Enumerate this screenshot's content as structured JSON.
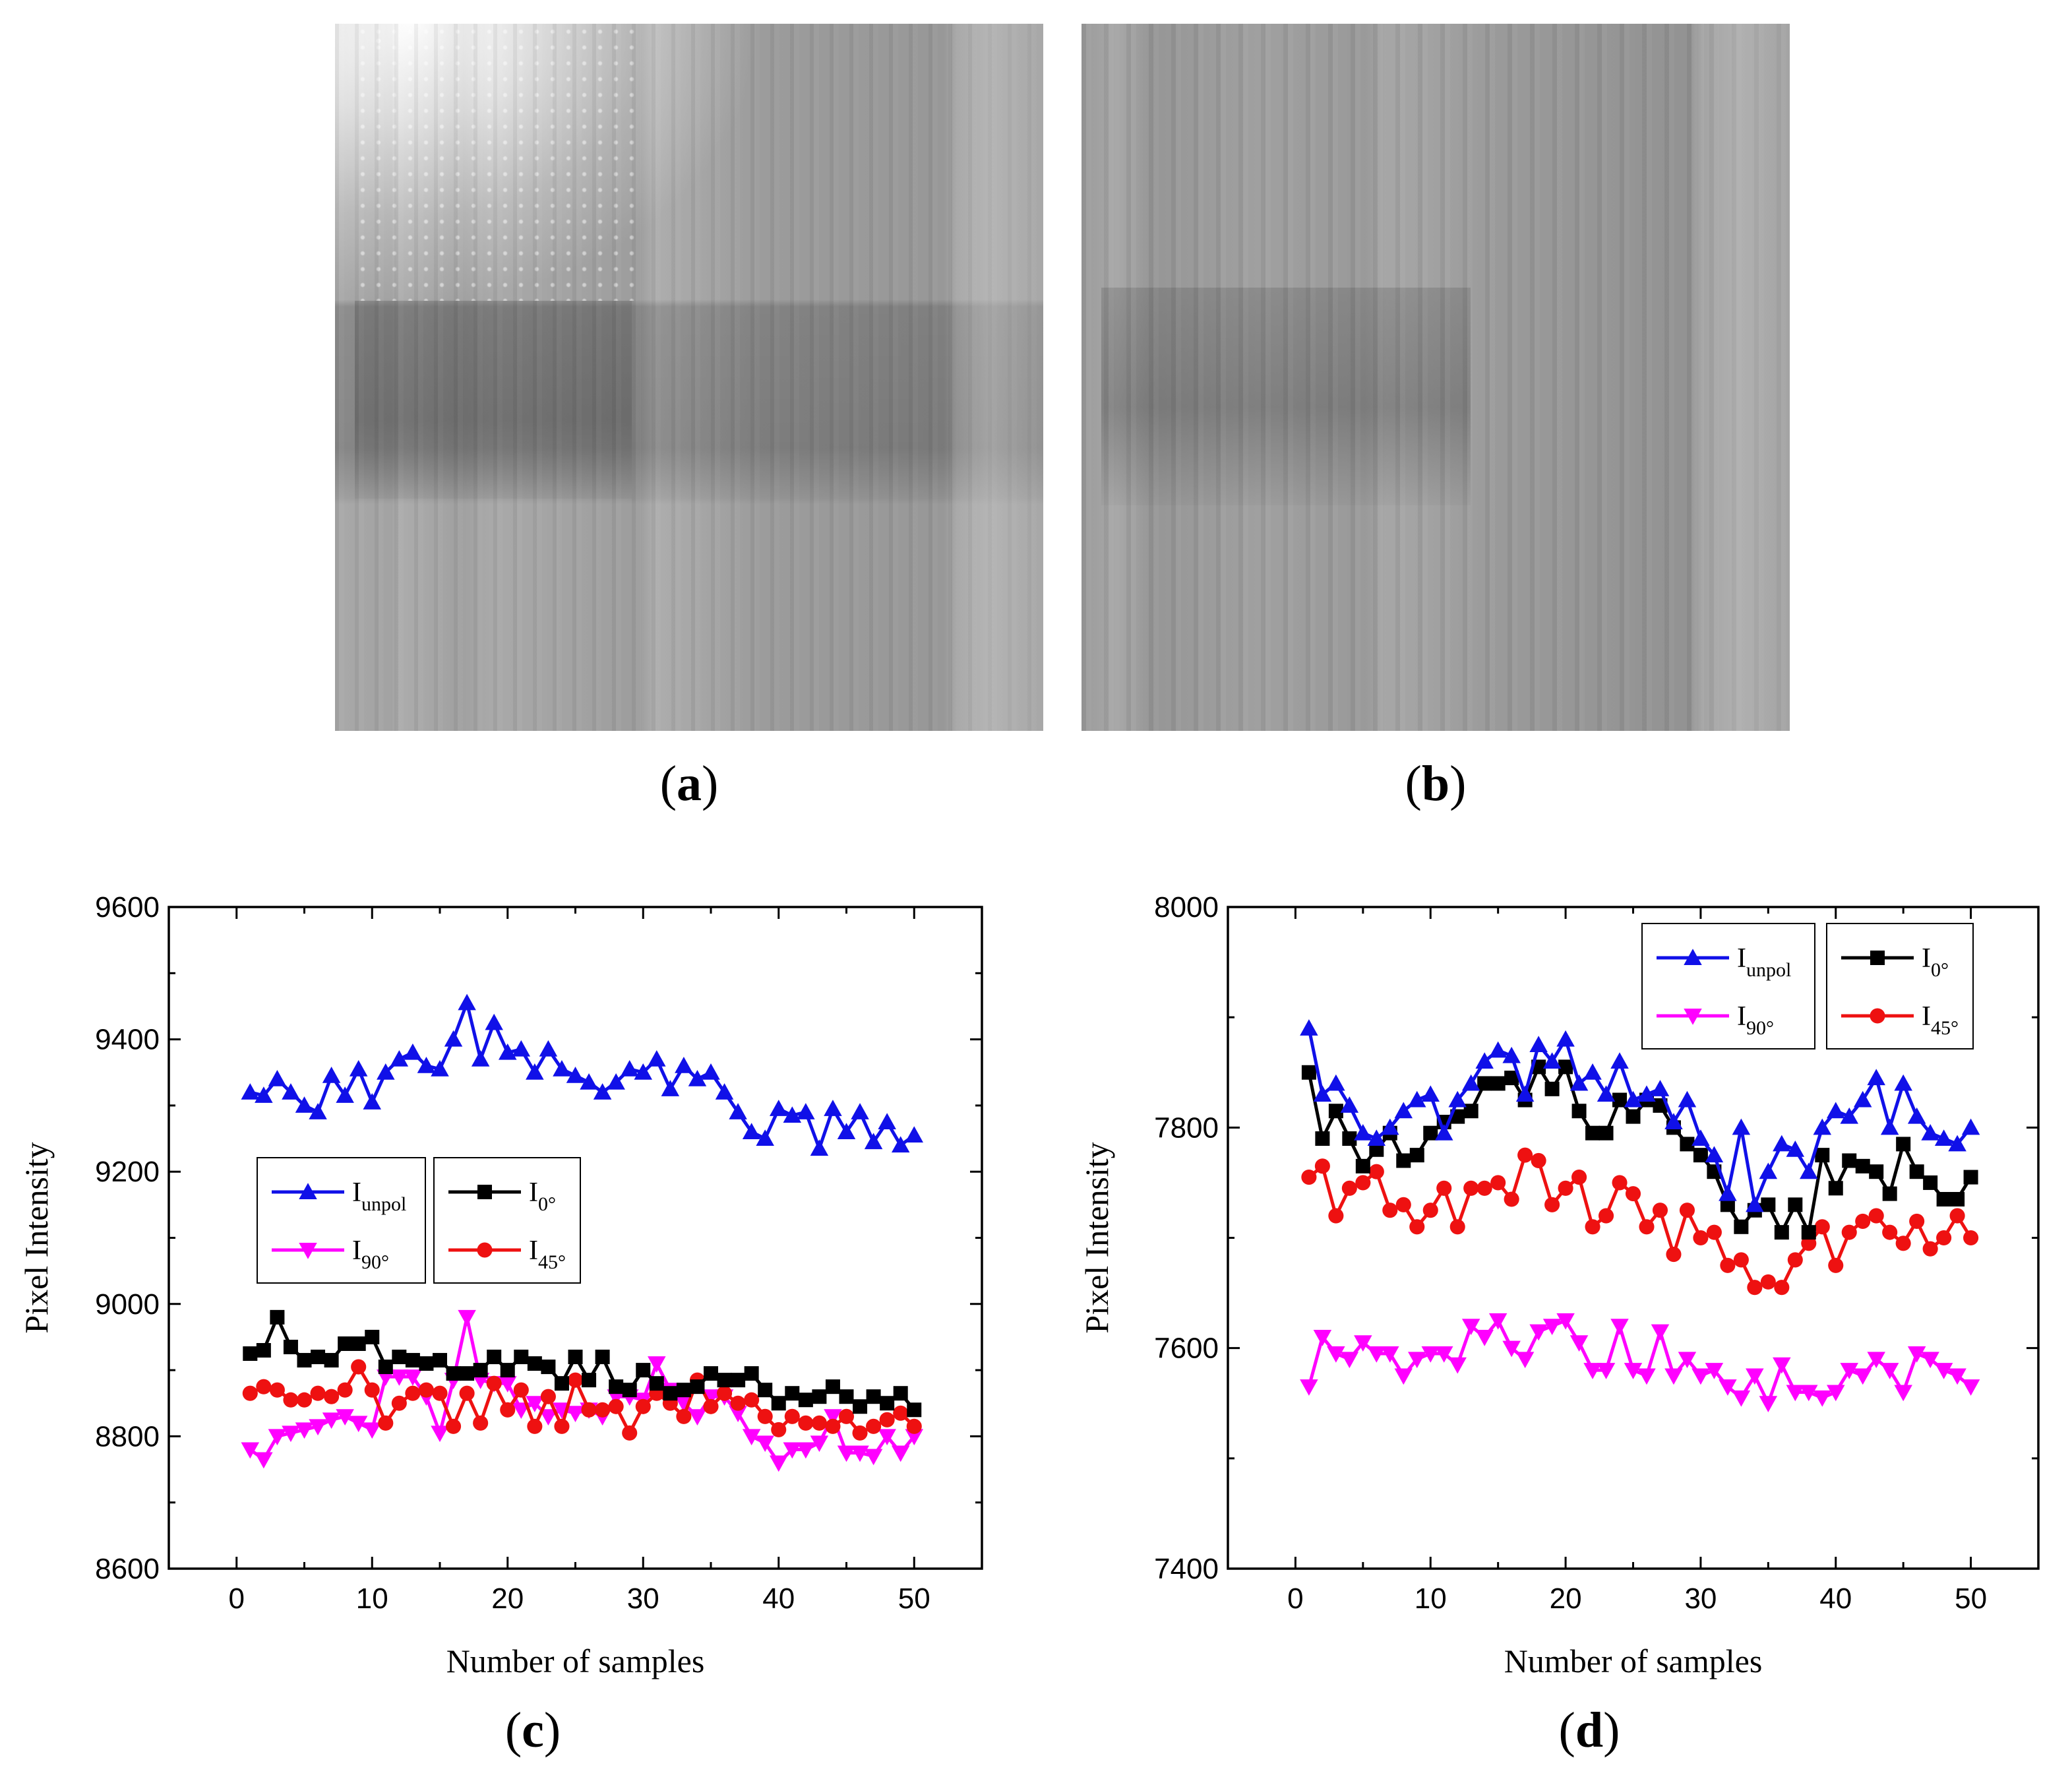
{
  "panels": {
    "a": {
      "label_open": "(",
      "letter": "a",
      "label_close": ")"
    },
    "b": {
      "label_open": "(",
      "letter": "b",
      "label_close": ")"
    },
    "c": {
      "label_open": "(",
      "letter": "c",
      "label_close": ")"
    },
    "d": {
      "label_open": "(",
      "letter": "d",
      "label_close": ")"
    }
  },
  "colors": {
    "unpol": "#1010e8",
    "i0": "#000000",
    "i45": "#ee1111",
    "i90": "#ff00ff"
  },
  "chart_data": [
    {
      "type": "line",
      "panel": "c",
      "xlabel": "Number of samples",
      "ylabel": "Pixel Intensity",
      "xlim": [
        -5,
        55
      ],
      "ylim": [
        8600,
        9600
      ],
      "xticks": [
        0,
        10,
        20,
        30,
        40,
        50
      ],
      "yticks": [
        8600,
        8800,
        9000,
        9200,
        9400,
        9600
      ],
      "legend": "middle-left, two boxes",
      "x": [
        1,
        2,
        3,
        4,
        5,
        6,
        7,
        8,
        9,
        10,
        11,
        12,
        13,
        14,
        15,
        16,
        17,
        18,
        19,
        20,
        21,
        22,
        23,
        24,
        25,
        26,
        27,
        28,
        29,
        30,
        31,
        32,
        33,
        34,
        35,
        36,
        37,
        38,
        39,
        40,
        41,
        42,
        43,
        44,
        45,
        46,
        47,
        48,
        49,
        50
      ],
      "series": [
        {
          "key": "unpol",
          "name_main": "I",
          "name_sub": "unpol",
          "marker": "triangle-up",
          "values": [
            9320,
            9315,
            9340,
            9320,
            9300,
            9290,
            9345,
            9315,
            9355,
            9305,
            9350,
            9370,
            9380,
            9360,
            9355,
            9400,
            9455,
            9370,
            9425,
            9380,
            9385,
            9350,
            9385,
            9355,
            9345,
            9335,
            9320,
            9335,
            9355,
            9350,
            9370,
            9325,
            9360,
            9340,
            9350,
            9320,
            9290,
            9260,
            9250,
            9295,
            9285,
            9290,
            9235,
            9295,
            9260,
            9290,
            9245,
            9275,
            9240,
            9255
          ]
        },
        {
          "key": "i0",
          "name_main": "I",
          "name_sub": "0°",
          "marker": "square",
          "values": [
            8925,
            8930,
            8980,
            8935,
            8915,
            8920,
            8915,
            8940,
            8940,
            8950,
            8905,
            8920,
            8915,
            8910,
            8915,
            8895,
            8895,
            8900,
            8920,
            8900,
            8920,
            8910,
            8905,
            8880,
            8920,
            8885,
            8920,
            8875,
            8870,
            8900,
            8880,
            8865,
            8870,
            8875,
            8895,
            8885,
            8885,
            8895,
            8870,
            8850,
            8865,
            8855,
            8860,
            8875,
            8860,
            8845,
            8860,
            8850,
            8865,
            8840
          ]
        },
        {
          "key": "i45",
          "name_main": "I",
          "name_sub": "45°",
          "marker": "circle",
          "values": [
            8865,
            8875,
            8870,
            8855,
            8855,
            8865,
            8860,
            8870,
            8905,
            8870,
            8820,
            8850,
            8865,
            8870,
            8865,
            8815,
            8865,
            8820,
            8880,
            8840,
            8870,
            8815,
            8860,
            8815,
            8885,
            8840,
            8840,
            8845,
            8805,
            8845,
            8865,
            8850,
            8830,
            8885,
            8845,
            8865,
            8850,
            8855,
            8830,
            8810,
            8830,
            8820,
            8820,
            8815,
            8830,
            8805,
            8815,
            8825,
            8835,
            8815
          ]
        },
        {
          "key": "i90",
          "name_main": "I",
          "name_sub": "90°",
          "marker": "triangle-down",
          "values": [
            8780,
            8765,
            8800,
            8805,
            8810,
            8815,
            8825,
            8830,
            8820,
            8810,
            8890,
            8890,
            8890,
            8860,
            8805,
            8885,
            8980,
            8885,
            8880,
            8880,
            8840,
            8850,
            8830,
            8840,
            8835,
            8840,
            8830,
            8860,
            8860,
            8855,
            8910,
            8870,
            8850,
            8830,
            8860,
            8860,
            8835,
            8800,
            8790,
            8760,
            8780,
            8780,
            8790,
            8830,
            8775,
            8775,
            8770,
            8800,
            8775,
            8800
          ]
        }
      ]
    },
    {
      "type": "line",
      "panel": "d",
      "xlabel": "Number of samples",
      "ylabel": "Pixel Intensity",
      "xlim": [
        -5,
        55
      ],
      "ylim": [
        7400,
        8000
      ],
      "xticks": [
        0,
        10,
        20,
        30,
        40,
        50
      ],
      "yticks": [
        7400,
        7600,
        7800,
        8000
      ],
      "legend": "top-right, two boxes",
      "x": [
        1,
        2,
        3,
        4,
        5,
        6,
        7,
        8,
        9,
        10,
        11,
        12,
        13,
        14,
        15,
        16,
        17,
        18,
        19,
        20,
        21,
        22,
        23,
        24,
        25,
        26,
        27,
        28,
        29,
        30,
        31,
        32,
        33,
        34,
        35,
        36,
        37,
        38,
        39,
        40,
        41,
        42,
        43,
        44,
        45,
        46,
        47,
        48,
        49,
        50
      ],
      "series": [
        {
          "key": "unpol",
          "name_main": "I",
          "name_sub": "unpol",
          "marker": "triangle-up",
          "values": [
            7890,
            7830,
            7840,
            7820,
            7795,
            7790,
            7800,
            7815,
            7825,
            7830,
            7795,
            7825,
            7840,
            7860,
            7870,
            7865,
            7830,
            7875,
            7860,
            7880,
            7840,
            7850,
            7830,
            7860,
            7825,
            7830,
            7835,
            7805,
            7825,
            7790,
            7775,
            7740,
            7800,
            7730,
            7760,
            7785,
            7780,
            7760,
            7800,
            7815,
            7810,
            7825,
            7845,
            7800,
            7840,
            7810,
            7795,
            7790,
            7785,
            7800
          ]
        },
        {
          "key": "i0",
          "name_main": "I",
          "name_sub": "0°",
          "marker": "square",
          "values": [
            7850,
            7790,
            7815,
            7790,
            7765,
            7780,
            7795,
            7770,
            7775,
            7795,
            7805,
            7810,
            7815,
            7840,
            7840,
            7845,
            7825,
            7855,
            7835,
            7855,
            7815,
            7795,
            7795,
            7825,
            7810,
            7825,
            7820,
            7800,
            7785,
            7775,
            7760,
            7730,
            7710,
            7725,
            7730,
            7705,
            7730,
            7705,
            7775,
            7745,
            7770,
            7765,
            7760,
            7740,
            7785,
            7760,
            7750,
            7735,
            7735,
            7755
          ]
        },
        {
          "key": "i45",
          "name_main": "I",
          "name_sub": "45°",
          "marker": "circle",
          "values": [
            7755,
            7765,
            7720,
            7745,
            7750,
            7760,
            7725,
            7730,
            7710,
            7725,
            7745,
            7710,
            7745,
            7745,
            7750,
            7735,
            7775,
            7770,
            7730,
            7745,
            7755,
            7710,
            7720,
            7750,
            7740,
            7710,
            7725,
            7685,
            7725,
            7700,
            7705,
            7675,
            7680,
            7655,
            7660,
            7655,
            7680,
            7695,
            7710,
            7675,
            7705,
            7715,
            7720,
            7705,
            7695,
            7715,
            7690,
            7700,
            7720,
            7700
          ]
        },
        {
          "key": "i90",
          "name_main": "I",
          "name_sub": "90°",
          "marker": "triangle-down",
          "values": [
            7565,
            7610,
            7595,
            7590,
            7605,
            7595,
            7595,
            7575,
            7590,
            7595,
            7595,
            7585,
            7620,
            7610,
            7625,
            7600,
            7590,
            7615,
            7620,
            7625,
            7605,
            7580,
            7580,
            7620,
            7580,
            7575,
            7615,
            7575,
            7590,
            7575,
            7580,
            7565,
            7555,
            7575,
            7550,
            7585,
            7560,
            7560,
            7555,
            7560,
            7580,
            7575,
            7590,
            7580,
            7560,
            7595,
            7590,
            7580,
            7575,
            7565
          ]
        }
      ]
    }
  ]
}
